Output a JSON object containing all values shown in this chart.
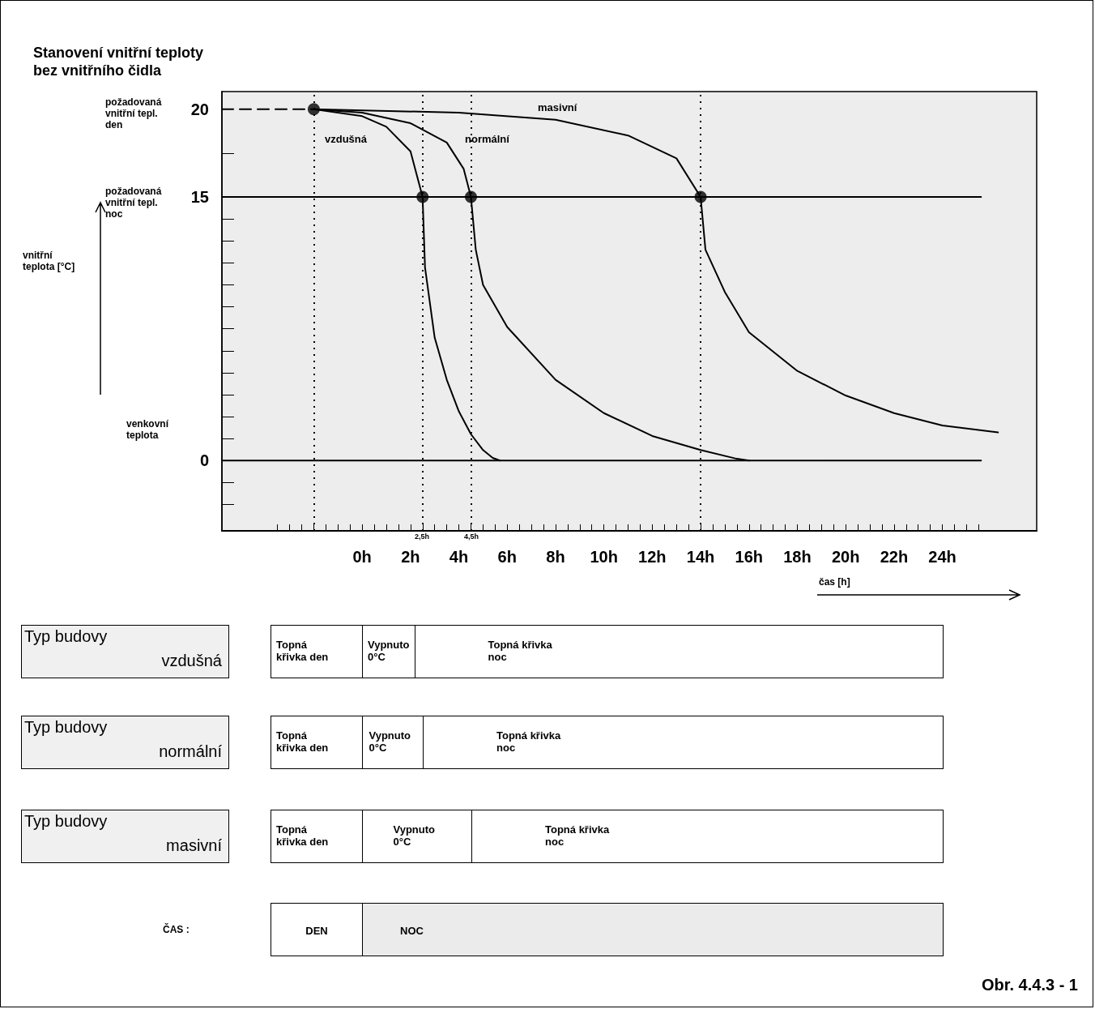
{
  "chart_data": [
    {
      "type": "line",
      "title": "Stanovení vnitřní teploty\nbez vnitřního čidla",
      "xlabel": "čas [h]",
      "ylabel": "vnitřní\nteplota [°C]",
      "xlim": [
        -5.8,
        27.9
      ],
      "ylim": [
        -4,
        21
      ],
      "xticks": [
        {
          "value": -3.5,
          "label": null
        },
        {
          "value": -3,
          "label": null
        },
        {
          "value": -2.5,
          "label": null
        },
        {
          "value": -2,
          "label": null
        },
        {
          "value": -1.5,
          "label": null
        },
        {
          "value": -1,
          "label": null
        },
        {
          "value": -0.5,
          "label": null
        },
        {
          "value": 0,
          "label": "0h"
        },
        {
          "value": 0.5,
          "label": null
        },
        {
          "value": 1,
          "label": null
        },
        {
          "value": 1.5,
          "label": null
        },
        {
          "value": 2,
          "label": "2h"
        },
        {
          "value": 2.5,
          "label": null
        },
        {
          "value": 3,
          "label": null
        },
        {
          "value": 3.5,
          "label": null
        },
        {
          "value": 4,
          "label": "4h"
        },
        {
          "value": 4.5,
          "label": null
        },
        {
          "value": 5,
          "label": null
        },
        {
          "value": 5.5,
          "label": null
        },
        {
          "value": 6,
          "label": "6h"
        },
        {
          "value": 6.5,
          "label": null
        },
        {
          "value": 7,
          "label": null
        },
        {
          "value": 7.5,
          "label": null
        },
        {
          "value": 8,
          "label": "8h"
        },
        {
          "value": 8.5,
          "label": null
        },
        {
          "value": 9,
          "label": null
        },
        {
          "value": 9.5,
          "label": null
        },
        {
          "value": 10,
          "label": "10h"
        },
        {
          "value": 10.5,
          "label": null
        },
        {
          "value": 11,
          "label": null
        },
        {
          "value": 11.5,
          "label": null
        },
        {
          "value": 12,
          "label": "12h"
        },
        {
          "value": 12.5,
          "label": null
        },
        {
          "value": 13,
          "label": null
        },
        {
          "value": 13.5,
          "label": null
        },
        {
          "value": 14,
          "label": "14h"
        },
        {
          "value": 14.5,
          "label": null
        },
        {
          "value": 15,
          "label": null
        },
        {
          "value": 15.5,
          "label": null
        },
        {
          "value": 16,
          "label": "16h"
        },
        {
          "value": 16.5,
          "label": null
        },
        {
          "value": 17,
          "label": null
        },
        {
          "value": 17.5,
          "label": null
        },
        {
          "value": 18,
          "label": "18h"
        },
        {
          "value": 18.5,
          "label": null
        },
        {
          "value": 19,
          "label": null
        },
        {
          "value": 19.5,
          "label": null
        },
        {
          "value": 20,
          "label": "20h"
        },
        {
          "value": 20.5,
          "label": null
        },
        {
          "value": 21,
          "label": null
        },
        {
          "value": 21.5,
          "label": null
        },
        {
          "value": 22,
          "label": "22h"
        },
        {
          "value": 22.5,
          "label": null
        },
        {
          "value": 23,
          "label": null
        },
        {
          "value": 23.5,
          "label": null
        },
        {
          "value": 24,
          "label": "24h"
        },
        {
          "value": 24.5,
          "label": null
        },
        {
          "value": 25,
          "label": null
        },
        {
          "value": 25.5,
          "label": null
        }
      ],
      "yticks": [
        {
          "value": -2.5,
          "label": null
        },
        {
          "value": -1.25,
          "label": null
        },
        0,
        {
          "value": 1.25,
          "label": null
        },
        {
          "value": 2.5,
          "label": null
        },
        {
          "value": 3.75,
          "label": null
        },
        {
          "value": 5,
          "label": null
        },
        {
          "value": 6.25,
          "label": null
        },
        {
          "value": 7.5,
          "label": null
        },
        {
          "value": 8.75,
          "label": null
        },
        {
          "value": 10,
          "label": null
        },
        {
          "value": 11.25,
          "label": null
        },
        {
          "value": 12.5,
          "label": null
        },
        {
          "value": 13.75,
          "label": null
        },
        15,
        {
          "value": 17.5,
          "label": null
        },
        20
      ],
      "grid": false,
      "series": [
        {
          "type": "line",
          "color": "#000000",
          "line_style": "dashed",
          "x": [
            -5.8,
            -2
          ],
          "values": [
            20,
            20
          ]
        },
        {
          "type": "line",
          "color": "#000000",
          "x": [
            -5.8,
            25.6
          ],
          "values": [
            15,
            15
          ]
        },
        {
          "type": "line",
          "color": "#000000",
          "x": [
            -5.8,
            25.6
          ],
          "values": [
            0,
            0
          ]
        },
        {
          "type": "line",
          "color": "#000000",
          "x": [
            -2,
            0,
            1,
            2,
            2.5,
            2.6,
            3,
            3.5,
            4,
            4.5,
            5,
            5.4,
            5.7
          ],
          "values": [
            20,
            19.6,
            19,
            17.6,
            15,
            11,
            7,
            4.6,
            2.8,
            1.5,
            0.6,
            0.15,
            0
          ]
        },
        {
          "type": "line",
          "color": "#000000",
          "x": [
            -2,
            0,
            2,
            3.5,
            4.2,
            4.5,
            4.7,
            5,
            6,
            8,
            10,
            12,
            14,
            15.5,
            16
          ],
          "values": [
            20,
            19.8,
            19.2,
            18.1,
            16.6,
            15,
            12,
            10,
            7.6,
            4.6,
            2.7,
            1.4,
            0.6,
            0.1,
            0
          ]
        },
        {
          "type": "line",
          "color": "#000000",
          "x": [
            -2,
            4,
            8,
            11,
            13,
            14,
            14.2,
            15,
            16,
            18,
            20,
            22,
            24,
            26.3
          ],
          "values": [
            20,
            19.8,
            19.4,
            18.5,
            17.2,
            15,
            12,
            9.6,
            7.3,
            5.1,
            3.7,
            2.7,
            2,
            1.6
          ]
        },
        {
          "type": "scatter",
          "color": "#000000",
          "marker": "circle",
          "x": [
            -2,
            2.5,
            4.5,
            14
          ],
          "values": [
            20,
            15,
            15,
            15
          ]
        }
      ],
      "ref_lines": [
        {
          "axis": "x",
          "value": -2,
          "line_style": "dotted",
          "color": "#000000"
        },
        {
          "axis": "x",
          "value": 2.5,
          "line_style": "dotted",
          "color": "#000000"
        },
        {
          "axis": "x",
          "value": 4.5,
          "line_style": "dotted",
          "color": "#000000"
        },
        {
          "axis": "x",
          "value": 14,
          "line_style": "dotted",
          "color": "#000000"
        }
      ],
      "annotations": [
        "požadovaná\nvnitřní tepl.\nden",
        "požadovaná\nvnitřní tepl.\nnoc",
        "venkovní\nteplota",
        "vzdušná",
        "normální",
        "masivní",
        "2,5h",
        "4,5h"
      ]
    },
    {
      "type": "other",
      "title": "Typ budovy",
      "subtitle": "vzdušná",
      "annotations": [
        "Topná\nkřivka den",
        "Vypnuto\n0°C",
        "Topná křivka\nnoc"
      ],
      "colors": [
        "#ffffff",
        "#ffffff",
        "#ffffff"
      ]
    },
    {
      "type": "other",
      "title": "Typ budovy",
      "subtitle": "normální",
      "annotations": [
        "Topná\nkřivka den",
        "Vypnuto\n0°C",
        "Topná křivka\nnoc"
      ],
      "colors": [
        "#ffffff",
        "#ffffff",
        "#ffffff"
      ]
    },
    {
      "type": "other",
      "title": "Typ budovy",
      "subtitle": "masivní",
      "annotations": [
        "Topná\nkřivka den",
        "Vypnuto\n0°C",
        "Topná křivka\nnoc"
      ],
      "colors": [
        "#ffffff",
        "#ffffff",
        "#ffffff"
      ]
    },
    {
      "type": "other",
      "title": "ČAS :",
      "annotations": [
        "DEN",
        "NOC"
      ],
      "colors": [
        "#ffffff",
        "#ebebeb"
      ]
    },
    {
      "type": "other",
      "title": "Obr. 4.4.3 - 1"
    }
  ]
}
